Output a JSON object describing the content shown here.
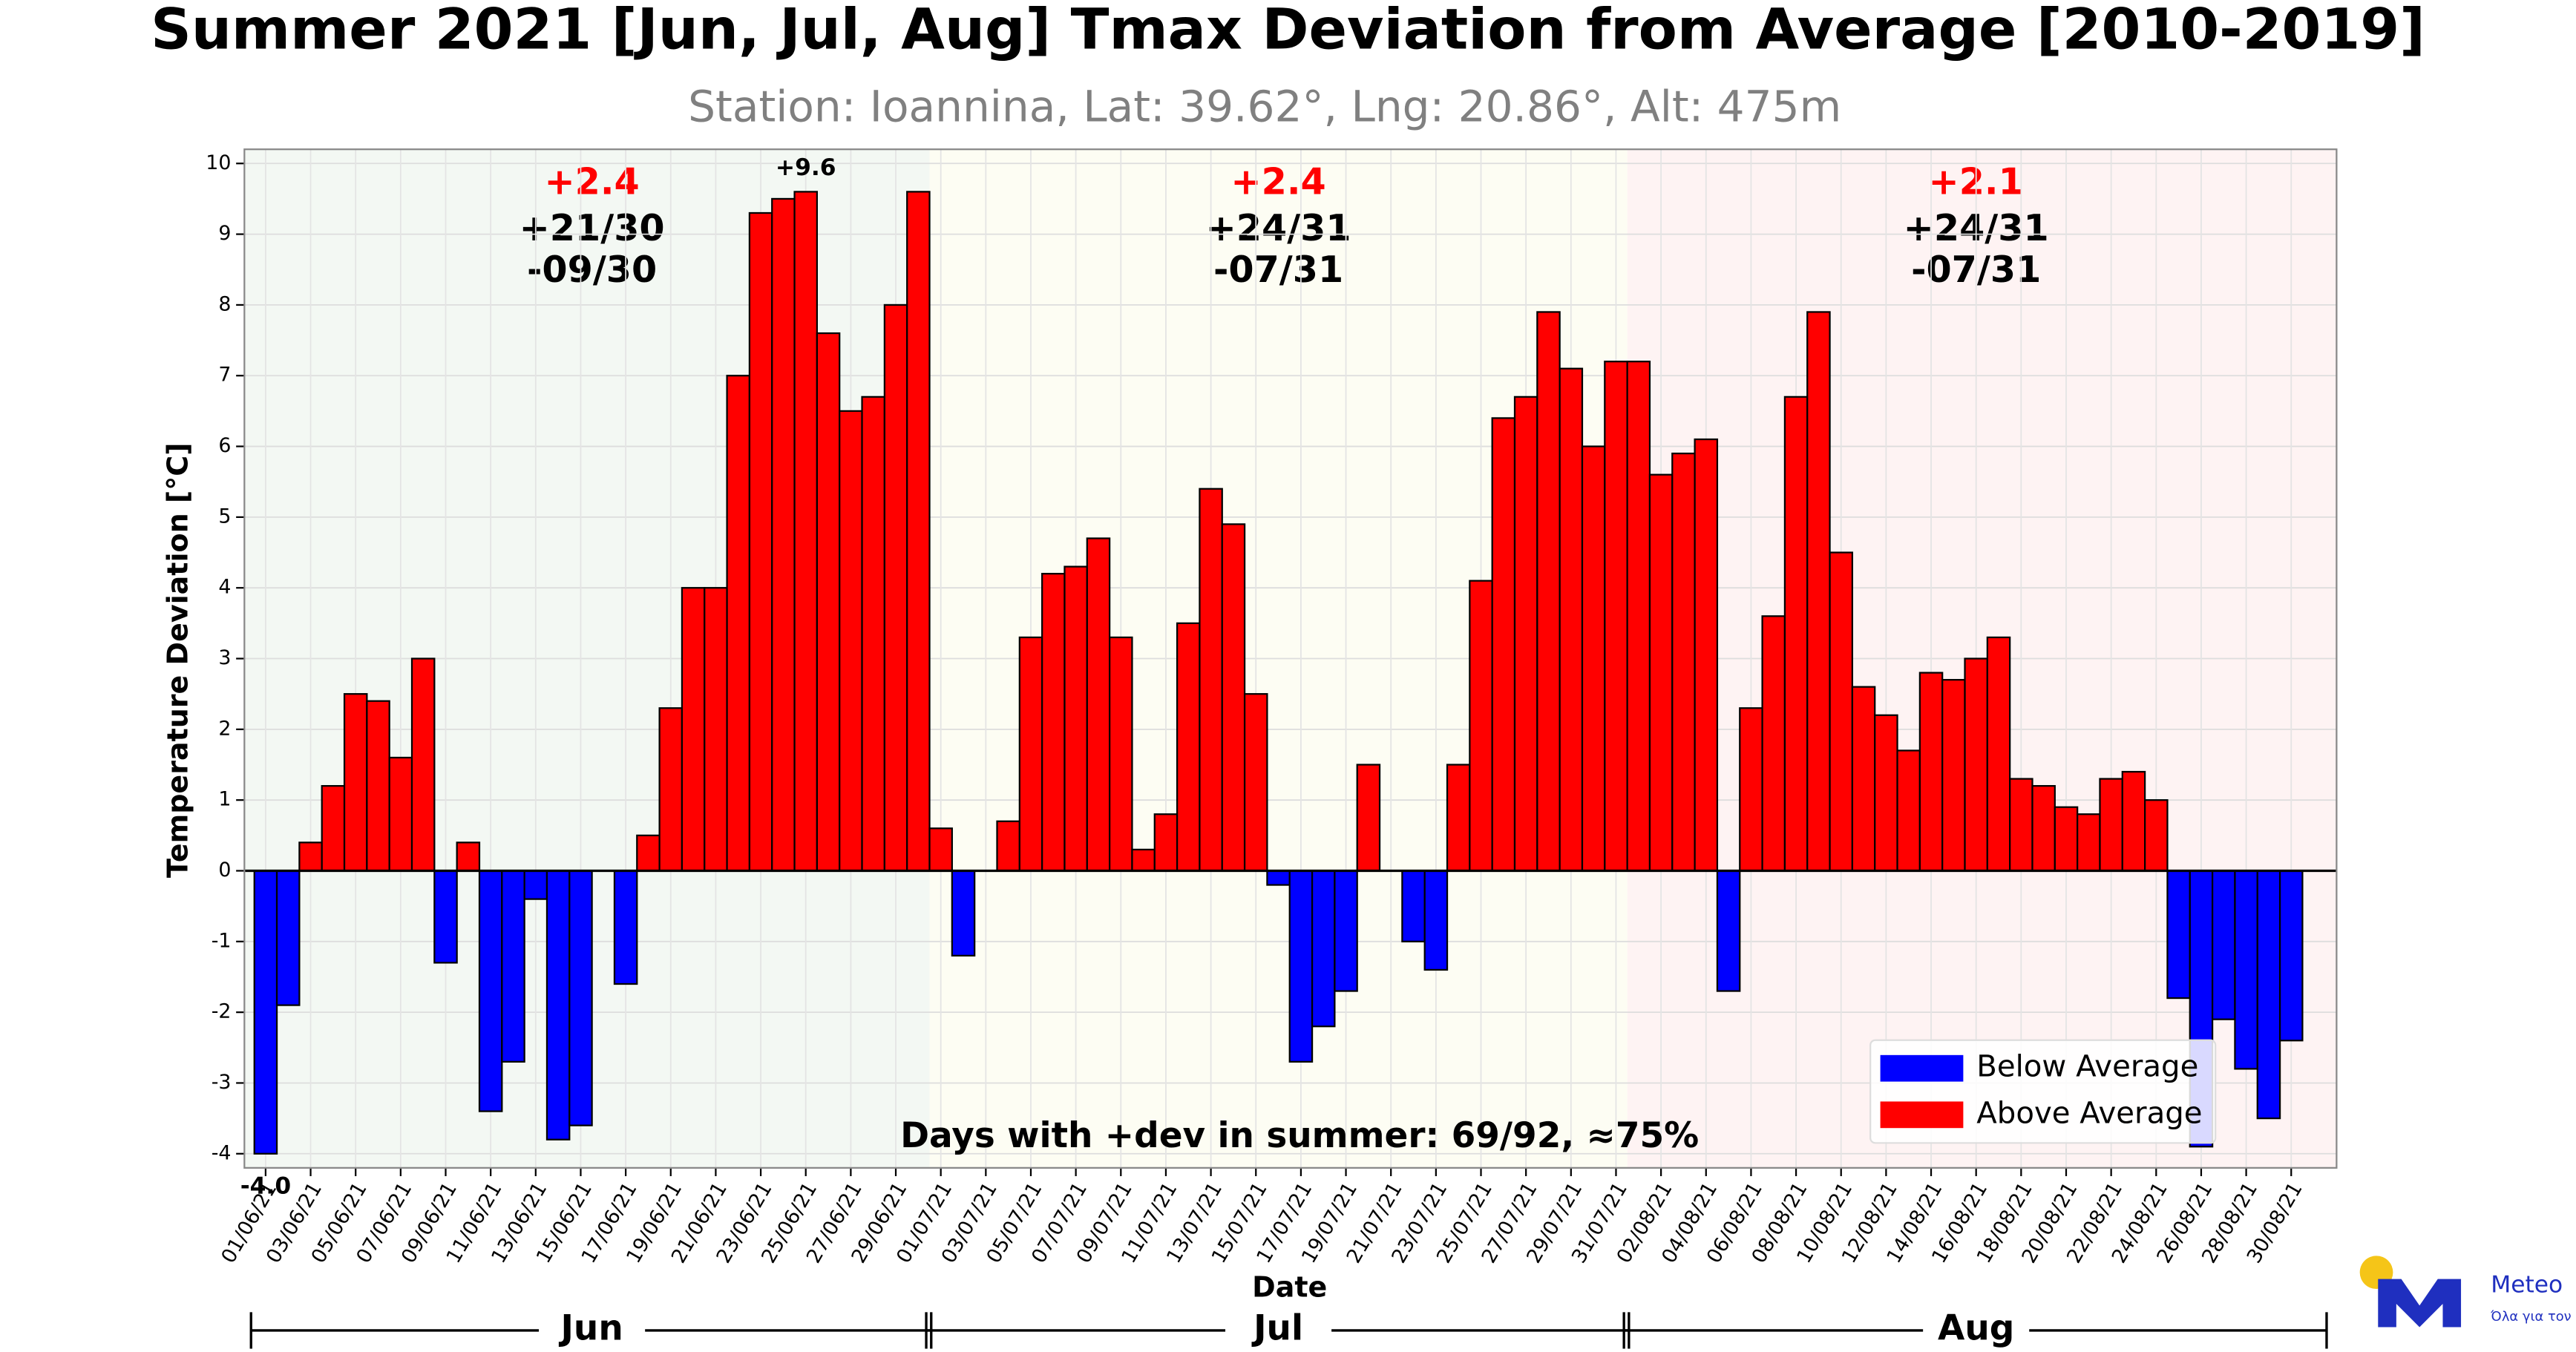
{
  "chart_data": {
    "type": "bar",
    "title": "Summer 2021 [Jun, Jul, Aug] Tmax Deviation from Average [2010-2019]",
    "subtitle": "Station: Ioannina, Lat: 39.62°, Lng: 20.86°, Alt: 475m",
    "x_label": "Date",
    "y_label": "Temperature Deviation [°C]",
    "ylim": [
      -4.2,
      10.2
    ],
    "yticks": [
      -4,
      -3,
      -2,
      -1,
      0,
      1,
      2,
      3,
      4,
      5,
      6,
      7,
      8,
      9,
      10
    ],
    "grid": true,
    "categories": [
      "01/06/21",
      null,
      "03/06/21",
      null,
      "05/06/21",
      null,
      "07/06/21",
      null,
      "09/06/21",
      null,
      "11/06/21",
      null,
      "13/06/21",
      null,
      "15/06/21",
      null,
      "17/06/21",
      null,
      "19/06/21",
      null,
      "21/06/21",
      null,
      "23/06/21",
      null,
      "25/06/21",
      null,
      "27/06/21",
      null,
      "29/06/21",
      null,
      "01/07/21",
      null,
      "03/07/21",
      null,
      "05/07/21",
      null,
      "07/07/21",
      null,
      "09/07/21",
      null,
      "11/07/21",
      null,
      "13/07/21",
      null,
      "15/07/21",
      null,
      "17/07/21",
      null,
      "19/07/21",
      null,
      "21/07/21",
      null,
      "23/07/21",
      null,
      "25/07/21",
      null,
      "27/07/21",
      null,
      "29/07/21",
      null,
      "31/07/21",
      null,
      "02/08/21",
      null,
      "04/08/21",
      null,
      "06/08/21",
      null,
      "08/08/21",
      null,
      "10/08/21",
      null,
      "12/08/21",
      null,
      "14/08/21",
      null,
      "16/08/21",
      null,
      "18/08/21",
      null,
      "20/08/21",
      null,
      "22/08/21",
      null,
      "24/08/21",
      null,
      "26/08/21",
      null,
      "28/08/21",
      null,
      "30/08/21",
      null
    ],
    "values": [
      -4.0,
      -1.9,
      0.4,
      1.2,
      2.5,
      2.4,
      1.6,
      3.0,
      -1.3,
      0.4,
      -3.4,
      -2.7,
      -0.4,
      -3.8,
      -3.6,
      0,
      -1.6,
      0.5,
      2.3,
      4.0,
      4.0,
      7.0,
      9.3,
      9.5,
      9.6,
      7.6,
      6.5,
      6.7,
      8.0,
      9.6,
      0.6,
      -1.2,
      0,
      0.7,
      3.3,
      4.2,
      4.3,
      4.7,
      3.3,
      0.3,
      0.8,
      3.5,
      5.4,
      4.9,
      2.5,
      -0.2,
      -2.7,
      -2.2,
      -1.7,
      1.5,
      0,
      -1.0,
      -1.4,
      1.5,
      4.1,
      6.4,
      6.7,
      7.9,
      7.1,
      6.0,
      7.2,
      7.2,
      5.6,
      5.9,
      6.1,
      -1.7,
      2.3,
      3.6,
      6.7,
      7.9,
      4.5,
      2.6,
      2.2,
      1.7,
      2.8,
      2.7,
      3.0,
      3.3,
      1.3,
      1.2,
      0.9,
      0.8,
      1.3,
      1.4,
      1.0,
      -1.8,
      -3.9,
      -2.1,
      -2.8,
      -3.5,
      -2.4,
      0
    ],
    "series_legend": [
      {
        "name": "Below Average",
        "color": "#0000ff"
      },
      {
        "name": "Above Average",
        "color": "#ff0000"
      }
    ],
    "legend_position": "lower right",
    "max_label": {
      "value": 9.6,
      "label": "+9.6"
    },
    "min_label": {
      "value": -4.0,
      "label": "-4.0"
    },
    "months": [
      {
        "name": "Jun",
        "days": 30,
        "mean": "+2.4",
        "above": "+21/30",
        "below": "-09/30",
        "color": "#f3f8f3"
      },
      {
        "name": "Jul",
        "days": 31,
        "mean": "+2.4",
        "above": "+24/31",
        "below": "-07/31",
        "color": "#fdfdf3"
      },
      {
        "name": "Aug",
        "days": 31,
        "mean": "+2.1",
        "above": "+24/31",
        "below": "-07/31",
        "color": "#fef3f3"
      }
    ],
    "annotation": "Days with +dev in summer: 69/92, ≈75%"
  },
  "logo": {
    "name": "Meteo",
    "tagline": "Όλα για τον καιρό"
  }
}
